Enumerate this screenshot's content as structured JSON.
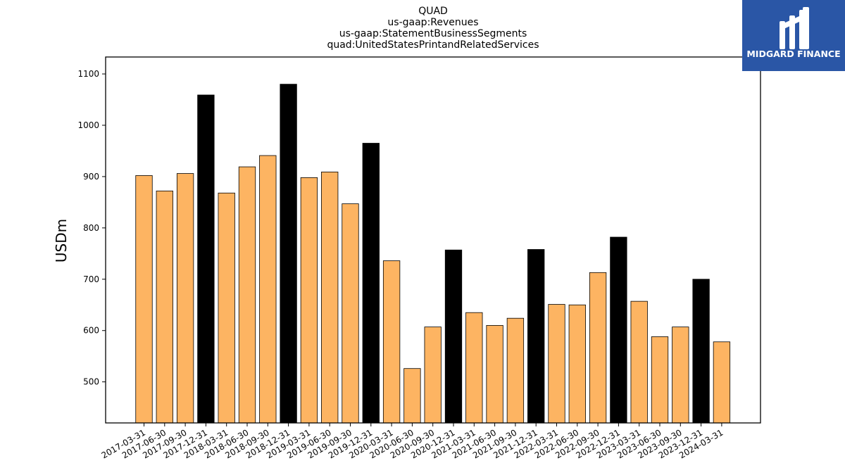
{
  "logo": {
    "text": "MIDGARD FINANCE",
    "bg_color": "#2a56a6"
  },
  "chart_data": {
    "type": "bar",
    "title_lines": [
      "QUAD",
      "us-gaap:Revenues",
      "us-gaap:StatementBusinessSegments",
      "quad:UnitedStatesPrintandRelatedServices"
    ],
    "xlabel": "",
    "ylabel": "USDm",
    "ylim": [
      420,
      1133
    ],
    "yticks": [
      500,
      600,
      700,
      800,
      900,
      1000,
      1100
    ],
    "categories": [
      "2017-03-31",
      "2017-06-30",
      "2017-09-30",
      "2017-12-31",
      "2018-03-31",
      "2018-06-30",
      "2018-09-30",
      "2018-12-31",
      "2019-03-31",
      "2019-06-30",
      "2019-09-30",
      "2019-12-31",
      "2020-03-31",
      "2020-06-30",
      "2020-09-30",
      "2020-12-31",
      "2021-03-31",
      "2021-06-30",
      "2021-09-30",
      "2021-12-31",
      "2022-03-31",
      "2022-06-30",
      "2022-09-30",
      "2022-12-31",
      "2023-03-31",
      "2023-06-30",
      "2023-09-30",
      "2023-12-31",
      "2024-03-31"
    ],
    "values": [
      902,
      872,
      906,
      1059,
      868,
      919,
      941,
      1080,
      898,
      909,
      847,
      965,
      736,
      526,
      607,
      757,
      635,
      610,
      624,
      758,
      651,
      650,
      713,
      782,
      657,
      588,
      607,
      700,
      578
    ],
    "highlight": [
      false,
      false,
      false,
      true,
      false,
      false,
      false,
      true,
      false,
      false,
      false,
      true,
      false,
      false,
      false,
      true,
      false,
      false,
      false,
      true,
      false,
      false,
      false,
      true,
      false,
      false,
      false,
      true,
      false
    ],
    "colors": {
      "normal": "#fdb462",
      "highlight": "#000000",
      "edge": "#000000"
    },
    "grid": false,
    "legend": "none"
  }
}
